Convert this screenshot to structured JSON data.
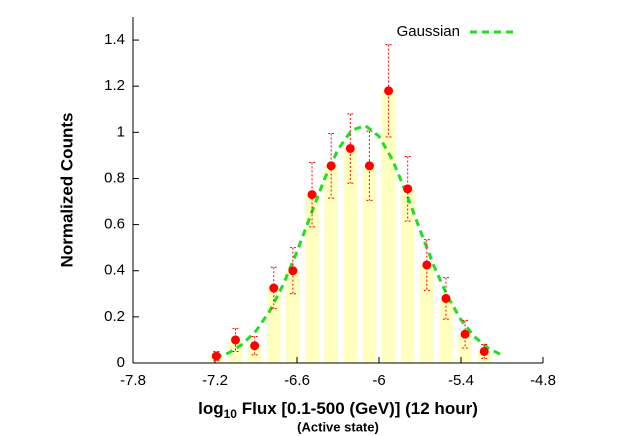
{
  "chart_data": {
    "type": "bar",
    "ylabel": "Normalized Counts",
    "xlabel_parts": [
      "log",
      "10",
      " Flux [0.1-500 (GeV)] (12 hour)"
    ],
    "subtitle": "(Active state)",
    "x": [
      -7.19,
      -7.05,
      -6.91,
      -6.77,
      -6.63,
      -6.49,
      -6.35,
      -6.21,
      -6.07,
      -5.93,
      -5.79,
      -5.65,
      -5.51,
      -5.37,
      -5.23
    ],
    "values": [
      0.03,
      0.1,
      0.075,
      0.325,
      0.4,
      0.73,
      0.855,
      0.93,
      0.855,
      1.18,
      0.755,
      0.425,
      0.28,
      0.125,
      0.05
    ],
    "errors": [
      0.02,
      0.05,
      0.04,
      0.09,
      0.1,
      0.14,
      0.14,
      0.15,
      0.15,
      0.2,
      0.14,
      0.11,
      0.09,
      0.06,
      0.03
    ],
    "bar_width": 0.1,
    "bar_color": "#ffffc0",
    "point_color": "#ff0000",
    "fit": {
      "name": "Gaussian",
      "color": "#22dd22",
      "x": [
        -7.2,
        -7.1,
        -7.0,
        -6.9,
        -6.8,
        -6.7,
        -6.6,
        -6.5,
        -6.4,
        -6.3,
        -6.2,
        -6.1,
        -6.0,
        -5.9,
        -5.8,
        -5.7,
        -5.6,
        -5.5,
        -5.4,
        -5.3,
        -5.2,
        -5.1
      ],
      "values": [
        0.022,
        0.044,
        0.081,
        0.139,
        0.225,
        0.341,
        0.483,
        0.641,
        0.796,
        0.926,
        1.009,
        1.029,
        0.983,
        0.879,
        0.736,
        0.577,
        0.423,
        0.291,
        0.187,
        0.113,
        0.064,
        0.034
      ]
    },
    "xlim": [
      -7.8,
      -4.8
    ],
    "xticks": [
      -7.8,
      -7.2,
      -6.6,
      -6,
      -5.4,
      -4.8
    ],
    "ylim": [
      0,
      1.5
    ],
    "yticks": [
      0,
      0.2,
      0.4,
      0.6,
      0.8,
      1,
      1.2,
      1.4
    ],
    "legend": "top-right"
  }
}
